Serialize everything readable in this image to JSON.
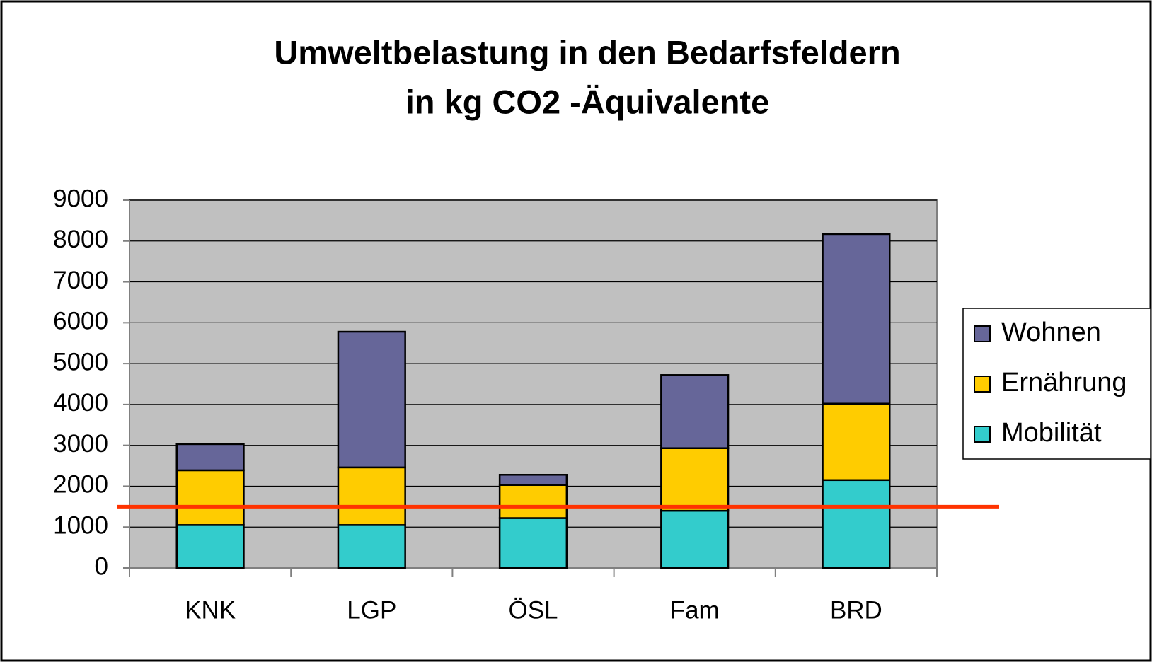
{
  "chart_data": {
    "type": "stacked_bar",
    "title": [
      "Umweltbelastung in den Bedarfsfeldern",
      "in kg CO2 -Äquivalente"
    ],
    "categories": [
      "KNK",
      "LGP",
      "ÖSL",
      "Fam",
      "BRD"
    ],
    "series": [
      {
        "name": "Mobilität",
        "color": "#33cccc",
        "values": [
          1050,
          1050,
          1220,
          1400,
          2150
        ]
      },
      {
        "name": "Ernährung",
        "color": "#ffcc00",
        "values": [
          1340,
          1410,
          810,
          1530,
          1870
        ]
      },
      {
        "name": "Wohnen",
        "color": "#666699",
        "values": [
          640,
          3320,
          250,
          1790,
          4150
        ]
      }
    ],
    "ylim": [
      0,
      9000
    ],
    "yticks": [
      0,
      1000,
      2000,
      3000,
      4000,
      5000,
      6000,
      7000,
      8000,
      9000
    ],
    "grid": true,
    "reference_line": {
      "value": 1500,
      "color": "#ff3300"
    },
    "legend": "right"
  }
}
